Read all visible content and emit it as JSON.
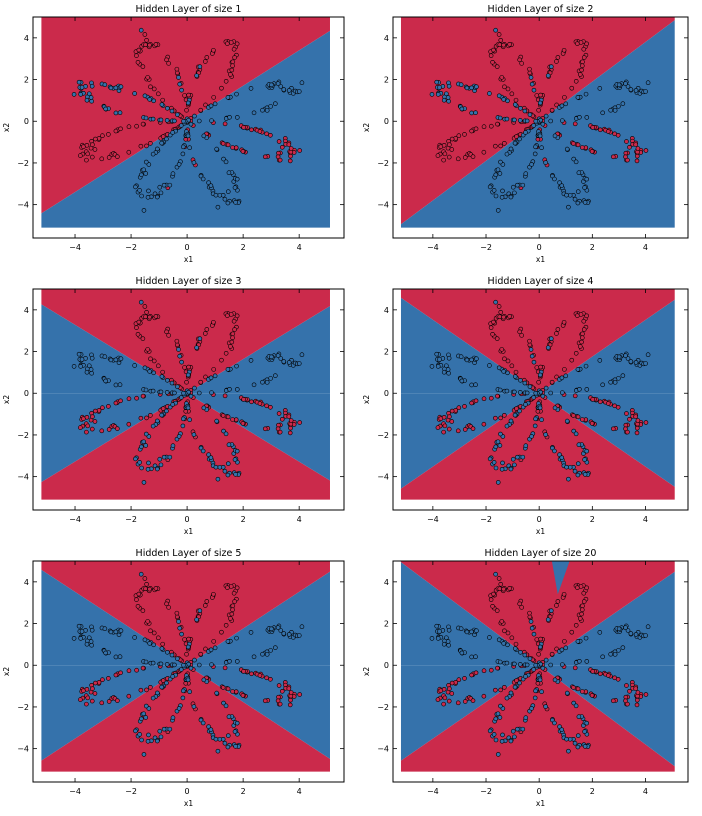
{
  "figure": {
    "colors": {
      "class0": "#CB2A4B",
      "class1": "#3572AB",
      "point_edge": "#000000",
      "frame": "#000000"
    }
  },
  "chart_data": [
    {
      "type": "scatter",
      "title": "Hidden Layer of size 1",
      "xlabel": "x1",
      "ylabel": "x2",
      "xlim": [
        -5.5,
        5.6
      ],
      "ylim": [
        -5.6,
        5.0
      ],
      "xticks": [
        -4,
        -2,
        0,
        2,
        4
      ],
      "yticks": [
        -4,
        -2,
        0,
        2,
        4
      ],
      "decision_regions": "single linear boundary through origin (slope ~0.85); upper-left red, lower-right blue",
      "boundary_slopes": [
        0.85
      ]
    },
    {
      "type": "scatter",
      "title": "Hidden Layer of size 2",
      "xlabel": "x1",
      "ylabel": "x2",
      "xlim": [
        -5.5,
        5.6
      ],
      "ylim": [
        -5.6,
        5.0
      ],
      "xticks": [
        -4,
        -2,
        0,
        2,
        4
      ],
      "yticks": [
        -4,
        -2,
        0,
        2,
        4
      ],
      "decision_regions": "single linear boundary through origin (slope ~0.95); upper-left red, lower-right blue",
      "boundary_slopes": [
        0.95
      ]
    },
    {
      "type": "scatter",
      "title": "Hidden Layer of size 3",
      "xlabel": "x1",
      "ylabel": "x2",
      "xlim": [
        -5.5,
        5.6
      ],
      "ylim": [
        -5.6,
        5.0
      ],
      "xticks": [
        -4,
        -2,
        0,
        2,
        4
      ],
      "yticks": [
        -4,
        -2,
        0,
        2,
        4
      ],
      "decision_regions": "three lines through origin: 6 alternating wedges (blue left/right wedges, red top/bottom)",
      "boundary_slopes": [
        0.0,
        0.82,
        -0.82
      ]
    },
    {
      "type": "scatter",
      "title": "Hidden Layer of size 4",
      "xlabel": "x1",
      "ylabel": "x2",
      "xlim": [
        -5.5,
        5.6
      ],
      "ylim": [
        -5.6,
        5.0
      ],
      "xticks": [
        -4,
        -2,
        0,
        2,
        4
      ],
      "yticks": [
        -4,
        -2,
        0,
        2,
        4
      ],
      "decision_regions": "three lines through origin: 6 alternating wedges",
      "boundary_slopes": [
        0.0,
        0.88,
        -0.88
      ]
    },
    {
      "type": "scatter",
      "title": "Hidden Layer of size 5",
      "xlabel": "x1",
      "ylabel": "x2",
      "xlim": [
        -5.5,
        5.6
      ],
      "ylim": [
        -5.6,
        5.0
      ],
      "xticks": [
        -4,
        -2,
        0,
        2,
        4
      ],
      "yticks": [
        -4,
        -2,
        0,
        2,
        4
      ],
      "decision_regions": "three lines through origin: 6 alternating wedges",
      "boundary_slopes": [
        0.0,
        0.88,
        -0.88
      ]
    },
    {
      "type": "scatter",
      "title": "Hidden Layer of size 20",
      "xlabel": "x1",
      "ylabel": "x2",
      "xlim": [
        -5.5,
        5.6
      ],
      "ylim": [
        -5.6,
        5.0
      ],
      "xticks": [
        -4,
        -2,
        0,
        2,
        4
      ],
      "yticks": [
        -4,
        -2,
        0,
        2,
        4
      ],
      "decision_regions": "three lines through origin: 6 alternating wedges, plus a small blue notch near top (x~0.8, y 3.4..5)",
      "boundary_slopes": [
        0.0,
        0.88,
        -0.95
      ]
    }
  ],
  "scatter_points": {
    "description": "flower-shaped planar dataset of 400 points; 4 petals each for red and blue classes; same points in every subplot",
    "points_per_class": 200,
    "petals": 4
  }
}
